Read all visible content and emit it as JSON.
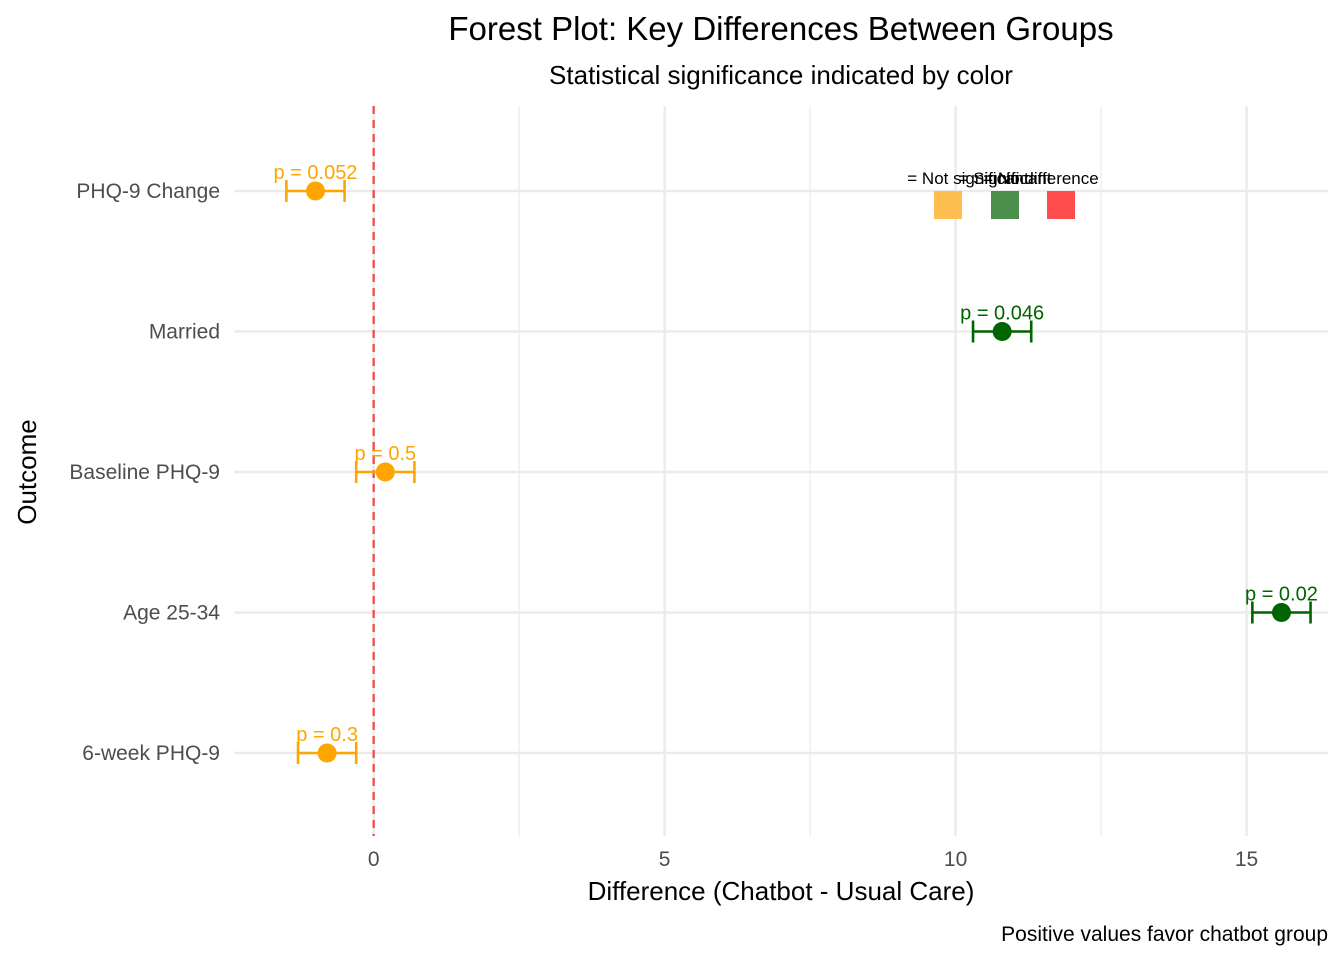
{
  "chart_data": {
    "type": "scatter",
    "subtype": "forest-plot",
    "title": "Forest Plot: Key Differences Between Groups",
    "subtitle": "Statistical significance indicated by color",
    "xlabel": "Difference (Chatbot - Usual Care)",
    "ylabel": "Outcome",
    "caption": "Positive values favor chatbot group",
    "xlim": [
      -2.4,
      16.4
    ],
    "xticks": [
      0,
      5,
      10,
      15
    ],
    "reference_line": {
      "x": 0,
      "color": "#ef5350",
      "style": "dashed"
    },
    "grid": true,
    "categories": [
      "PHQ-9 Change",
      "Married",
      "Baseline PHQ-9",
      "Age 25-34",
      "6-week PHQ-9"
    ],
    "points": [
      {
        "outcome": "PHQ-9 Change",
        "estimate": -1.0,
        "ci_low": -1.5,
        "ci_high": -0.5,
        "label": "p = 0.052",
        "significant": false
      },
      {
        "outcome": "Married",
        "estimate": 10.8,
        "ci_low": 10.3,
        "ci_high": 11.3,
        "label": "p = 0.046",
        "significant": true
      },
      {
        "outcome": "Baseline PHQ-9",
        "estimate": 0.2,
        "ci_low": -0.3,
        "ci_high": 0.7,
        "label": "p = 0.5",
        "significant": false
      },
      {
        "outcome": "Age 25-34",
        "estimate": 15.6,
        "ci_low": 15.1,
        "ci_high": 16.1,
        "label": "p = 0.02",
        "significant": true
      },
      {
        "outcome": "6-week PHQ-9",
        "estimate": -0.8,
        "ci_low": -1.3,
        "ci_high": -0.3,
        "label": "p = 0.3",
        "significant": false
      }
    ],
    "colors": {
      "significant": "#006400",
      "not_significant": "#ffa500",
      "reference": "#ef5350"
    },
    "legend": {
      "placement": "top-right",
      "items": [
        {
          "label": "= Not significant",
          "color": "#ffbf50"
        },
        {
          "label": "= Significant",
          "color": "#4c8f4c"
        },
        {
          "label": "= No difference",
          "color": "#ff4d4d"
        }
      ]
    }
  }
}
